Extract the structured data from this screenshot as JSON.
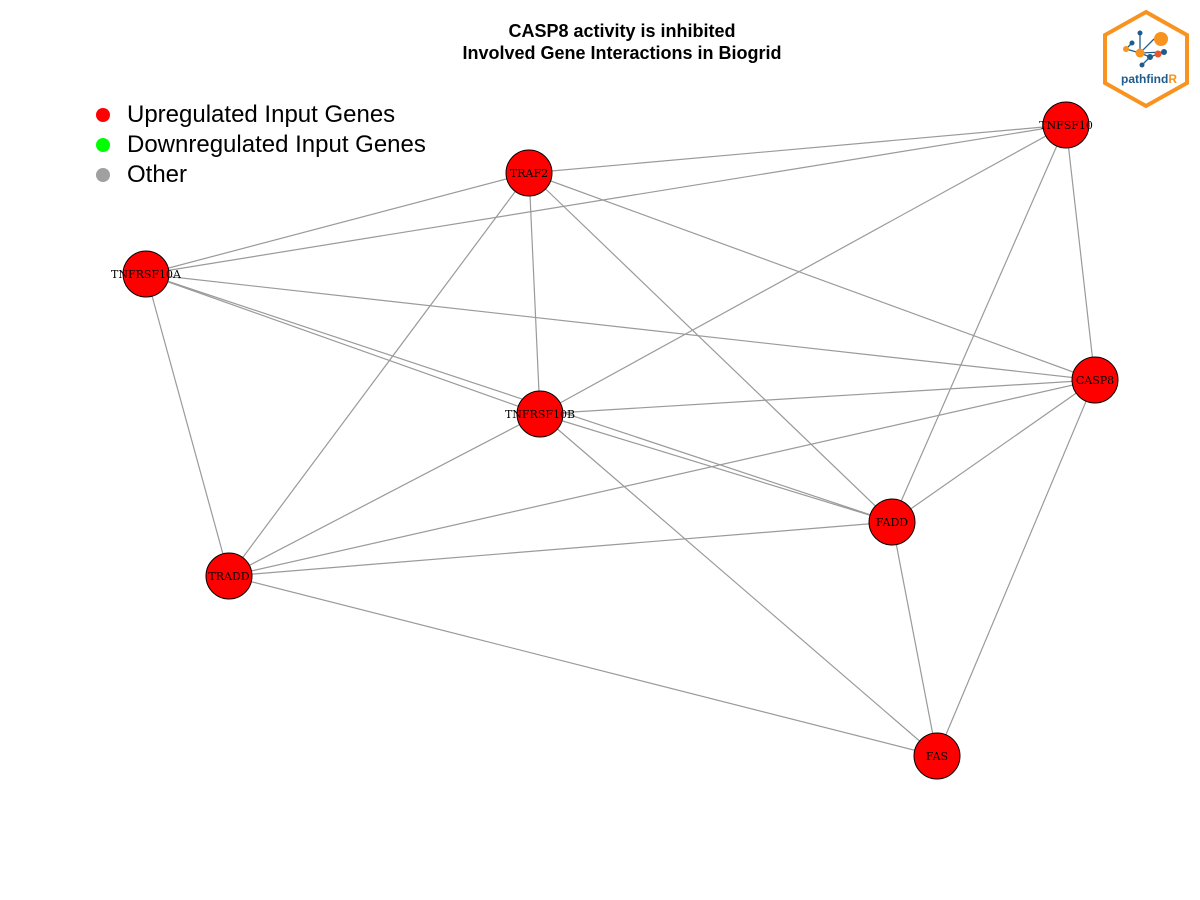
{
  "title": {
    "line1": "CASP8 activity is inhibited",
    "line2": "Involved Gene Interactions in Biogrid"
  },
  "legend": [
    {
      "label": "Upregulated Input Genes",
      "color": "#ff0000"
    },
    {
      "label": "Downregulated Input Genes",
      "color": "#00ff00"
    },
    {
      "label": "Other",
      "color": "#a0a0a0"
    }
  ],
  "logo": {
    "text_main": "pathfind",
    "text_accent": "R",
    "colors": {
      "border": "#f7931e",
      "accent": "#f7931e",
      "text": "#1f5c8b"
    }
  },
  "network": {
    "node_color": "#ff0000",
    "edge_color": "#9a9a9a",
    "nodes": [
      {
        "id": "TNFSF10",
        "label": "TNFSF10"
      },
      {
        "id": "TRAF2",
        "label": "TRAF2"
      },
      {
        "id": "TNFRSF10A",
        "label": "TNFRSF10A"
      },
      {
        "id": "CASP8",
        "label": "CASP8"
      },
      {
        "id": "TNFRSF10B",
        "label": "TNFRSF10B"
      },
      {
        "id": "FADD",
        "label": "FADD"
      },
      {
        "id": "TRADD",
        "label": "TRADD"
      },
      {
        "id": "FAS",
        "label": "FAS"
      }
    ],
    "edges": [
      [
        "TRAF2",
        "TNFSF10"
      ],
      [
        "TNFRSF10A",
        "TNFSF10"
      ],
      [
        "TNFRSF10A",
        "TRAF2"
      ],
      [
        "TNFRSF10A",
        "CASP8"
      ],
      [
        "TNFRSF10A",
        "TNFRSF10B"
      ],
      [
        "TNFRSF10A",
        "FADD"
      ],
      [
        "TNFRSF10A",
        "TRADD"
      ],
      [
        "TRAF2",
        "TNFRSF10B"
      ],
      [
        "TRAF2",
        "CASP8"
      ],
      [
        "TRAF2",
        "FADD"
      ],
      [
        "TRAF2",
        "TRADD"
      ],
      [
        "TNFSF10",
        "TNFRSF10B"
      ],
      [
        "TNFSF10",
        "CASP8"
      ],
      [
        "TNFSF10",
        "FADD"
      ],
      [
        "TNFRSF10B",
        "CASP8"
      ],
      [
        "TNFRSF10B",
        "FADD"
      ],
      [
        "TNFRSF10B",
        "TRADD"
      ],
      [
        "TNFRSF10B",
        "FAS"
      ],
      [
        "CASP8",
        "FADD"
      ],
      [
        "CASP8",
        "TRADD"
      ],
      [
        "CASP8",
        "FAS"
      ],
      [
        "FADD",
        "TRADD"
      ],
      [
        "FADD",
        "FAS"
      ],
      [
        "TRADD",
        "FAS"
      ]
    ]
  }
}
